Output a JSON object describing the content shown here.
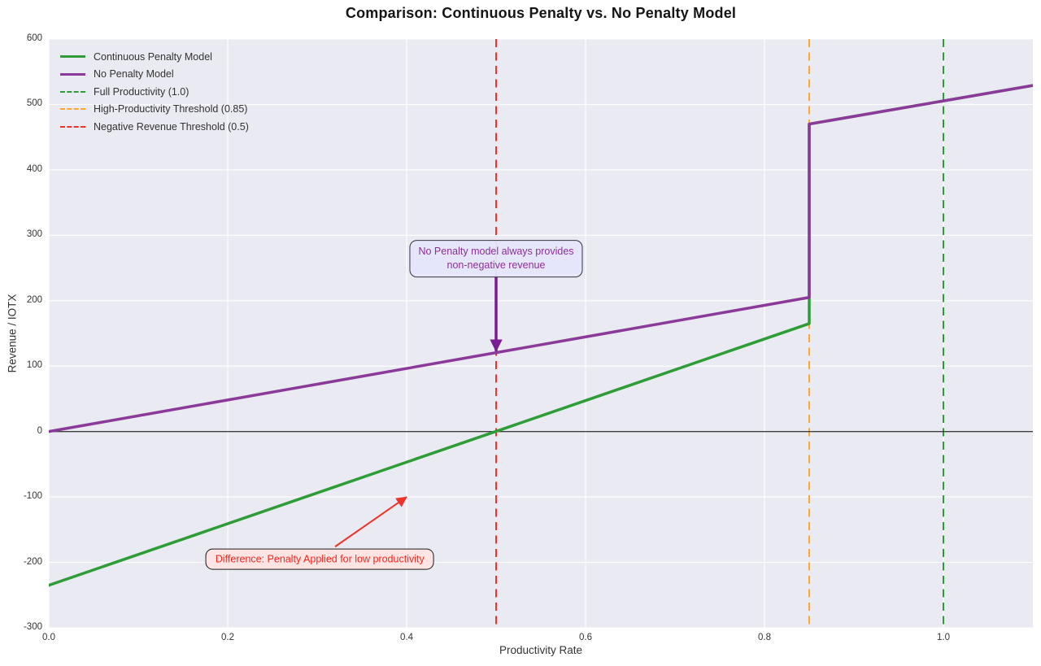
{
  "title": "Comparison: Continuous Penalty vs. No Penalty Model",
  "axes": {
    "xlabel": "Productivity Rate",
    "ylabel": "Revenue / IOTX",
    "x_tick_labels": [
      "0.0",
      "0.2",
      "0.4",
      "0.6",
      "0.8",
      "1.0"
    ],
    "x_tick_values": [
      0,
      0.2,
      0.4,
      0.6,
      0.8,
      1.0
    ],
    "y_tick_labels": [
      "600",
      "500",
      "400",
      "300",
      "200",
      "100",
      "0",
      "-100",
      "-200",
      "-300"
    ],
    "y_tick_values": [
      600,
      500,
      400,
      300,
      200,
      100,
      0,
      -100,
      -200,
      -300
    ]
  },
  "legend": {
    "items": [
      {
        "label": "Continuous Penalty Model",
        "color": "#2e9d38",
        "dash": false
      },
      {
        "label": "No Penalty Model",
        "color": "#8b3a9a",
        "dash": false
      },
      {
        "label": "Full Productivity (1.0)",
        "color": "#2e9d38",
        "dash": true
      },
      {
        "label": "High-Productivity Threshold (0.85)",
        "color": "#ffa62b",
        "dash": true
      },
      {
        "label": "Negative Revenue Threshold (0.5)",
        "color": "#f0322b",
        "dash": true
      }
    ]
  },
  "annotations": [
    {
      "name": "no-penalty-note",
      "text": "No Penalty model always provides\nnon-negative revenue",
      "text_color": "#8b2f9b",
      "box_color": "#e6e6fa",
      "border_color": "#34343e",
      "arrow_color": "#7a1a96",
      "arrow_width": 3.5,
      "text_at": [
        0.5,
        264
      ],
      "arrow_from": [
        0.5,
        240
      ],
      "arrow_to": [
        0.5,
        123
      ]
    },
    {
      "name": "penalty-difference-note",
      "text": "Difference: Penalty Applied for low productivity",
      "text_color": "#f5271d",
      "box_color": "#ffe4e1",
      "border_color": "#1a1a1a",
      "arrow_color": "#f0322b",
      "arrow_width": 2,
      "text_at": [
        0.303,
        -195
      ],
      "arrow_from": [
        0.32,
        -176
      ],
      "arrow_to": [
        0.4,
        -100
      ]
    }
  ],
  "chart_data": {
    "type": "line",
    "title": "Comparison: Continuous Penalty vs. No Penalty Model",
    "xlabel": "Productivity Rate",
    "ylabel": "Revenue / IOTX",
    "xlim": [
      0,
      1.1
    ],
    "ylim": [
      -300,
      600
    ],
    "grid": true,
    "grid_color": "#ffffff",
    "plot_bg": "#eaeaf2",
    "legend_position": "upper left",
    "series": [
      {
        "name": "Continuous Penalty Model",
        "color": "#2e9d38",
        "width": 3.5,
        "points": [
          [
            0,
            -235
          ],
          [
            0.85,
            165
          ],
          [
            0.85,
            470
          ],
          [
            1.1,
            529
          ]
        ]
      },
      {
        "name": "No Penalty Model",
        "color": "#8b3a9a",
        "width": 3.5,
        "points": [
          [
            0,
            0
          ],
          [
            0.85,
            205
          ],
          [
            0.85,
            470
          ],
          [
            1.1,
            529
          ]
        ]
      }
    ],
    "vlines": [
      {
        "x": 0.5,
        "color": "#f0322b",
        "label": "Negative Revenue Threshold (0.5)"
      },
      {
        "x": 0.85,
        "color": "#ffa62b",
        "label": "High-Productivity Threshold (0.85)"
      },
      {
        "x": 1.0,
        "color": "#2e9d38",
        "label": "Full Productivity (1.0)"
      }
    ],
    "hlines": [
      {
        "y": 0,
        "color": "#3d3d3d",
        "width": 1.3
      }
    ]
  }
}
